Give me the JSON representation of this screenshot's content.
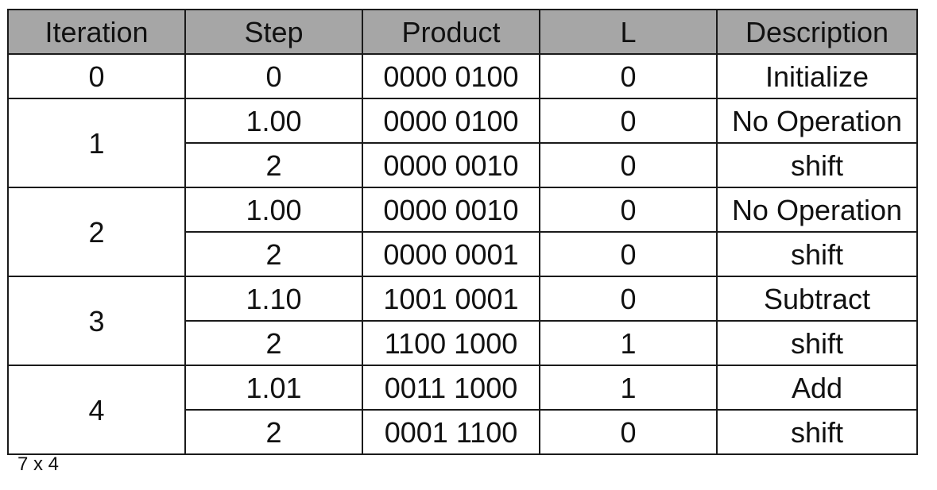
{
  "table": {
    "headers": [
      "Iteration",
      "Step",
      "Product",
      "L",
      "Description"
    ],
    "groups": [
      {
        "iteration": "0",
        "rows": [
          {
            "step": "0",
            "product": "0000 0100",
            "l": "0",
            "description": "Initialize"
          }
        ]
      },
      {
        "iteration": "1",
        "rows": [
          {
            "step": "1.00",
            "product": "0000 0100",
            "l": "0",
            "description": "No Operation"
          },
          {
            "step": "2",
            "product": "0000 0010",
            "l": "0",
            "description": "shift"
          }
        ]
      },
      {
        "iteration": "2",
        "rows": [
          {
            "step": "1.00",
            "product": "0000 0010",
            "l": "0",
            "description": "No Operation"
          },
          {
            "step": "2",
            "product": "0000 0001",
            "l": "0",
            "description": "shift"
          }
        ]
      },
      {
        "iteration": "3",
        "rows": [
          {
            "step": "1.10",
            "product": "1001 0001",
            "l": "0",
            "description": "Subtract"
          },
          {
            "step": "2",
            "product": "1100 1000",
            "l": "1",
            "description": "shift"
          }
        ]
      },
      {
        "iteration": "4",
        "rows": [
          {
            "step": "1.01",
            "product": "0011 1000",
            "l": "1",
            "description": "Add"
          },
          {
            "step": "2",
            "product": "0001 1100",
            "l": "0",
            "description": "shift"
          }
        ]
      }
    ]
  },
  "caption": "7 x 4",
  "colors": {
    "header_bg": "#a6a6a6",
    "border": "#1a1a1a",
    "text": "#111111",
    "background": "#ffffff"
  }
}
